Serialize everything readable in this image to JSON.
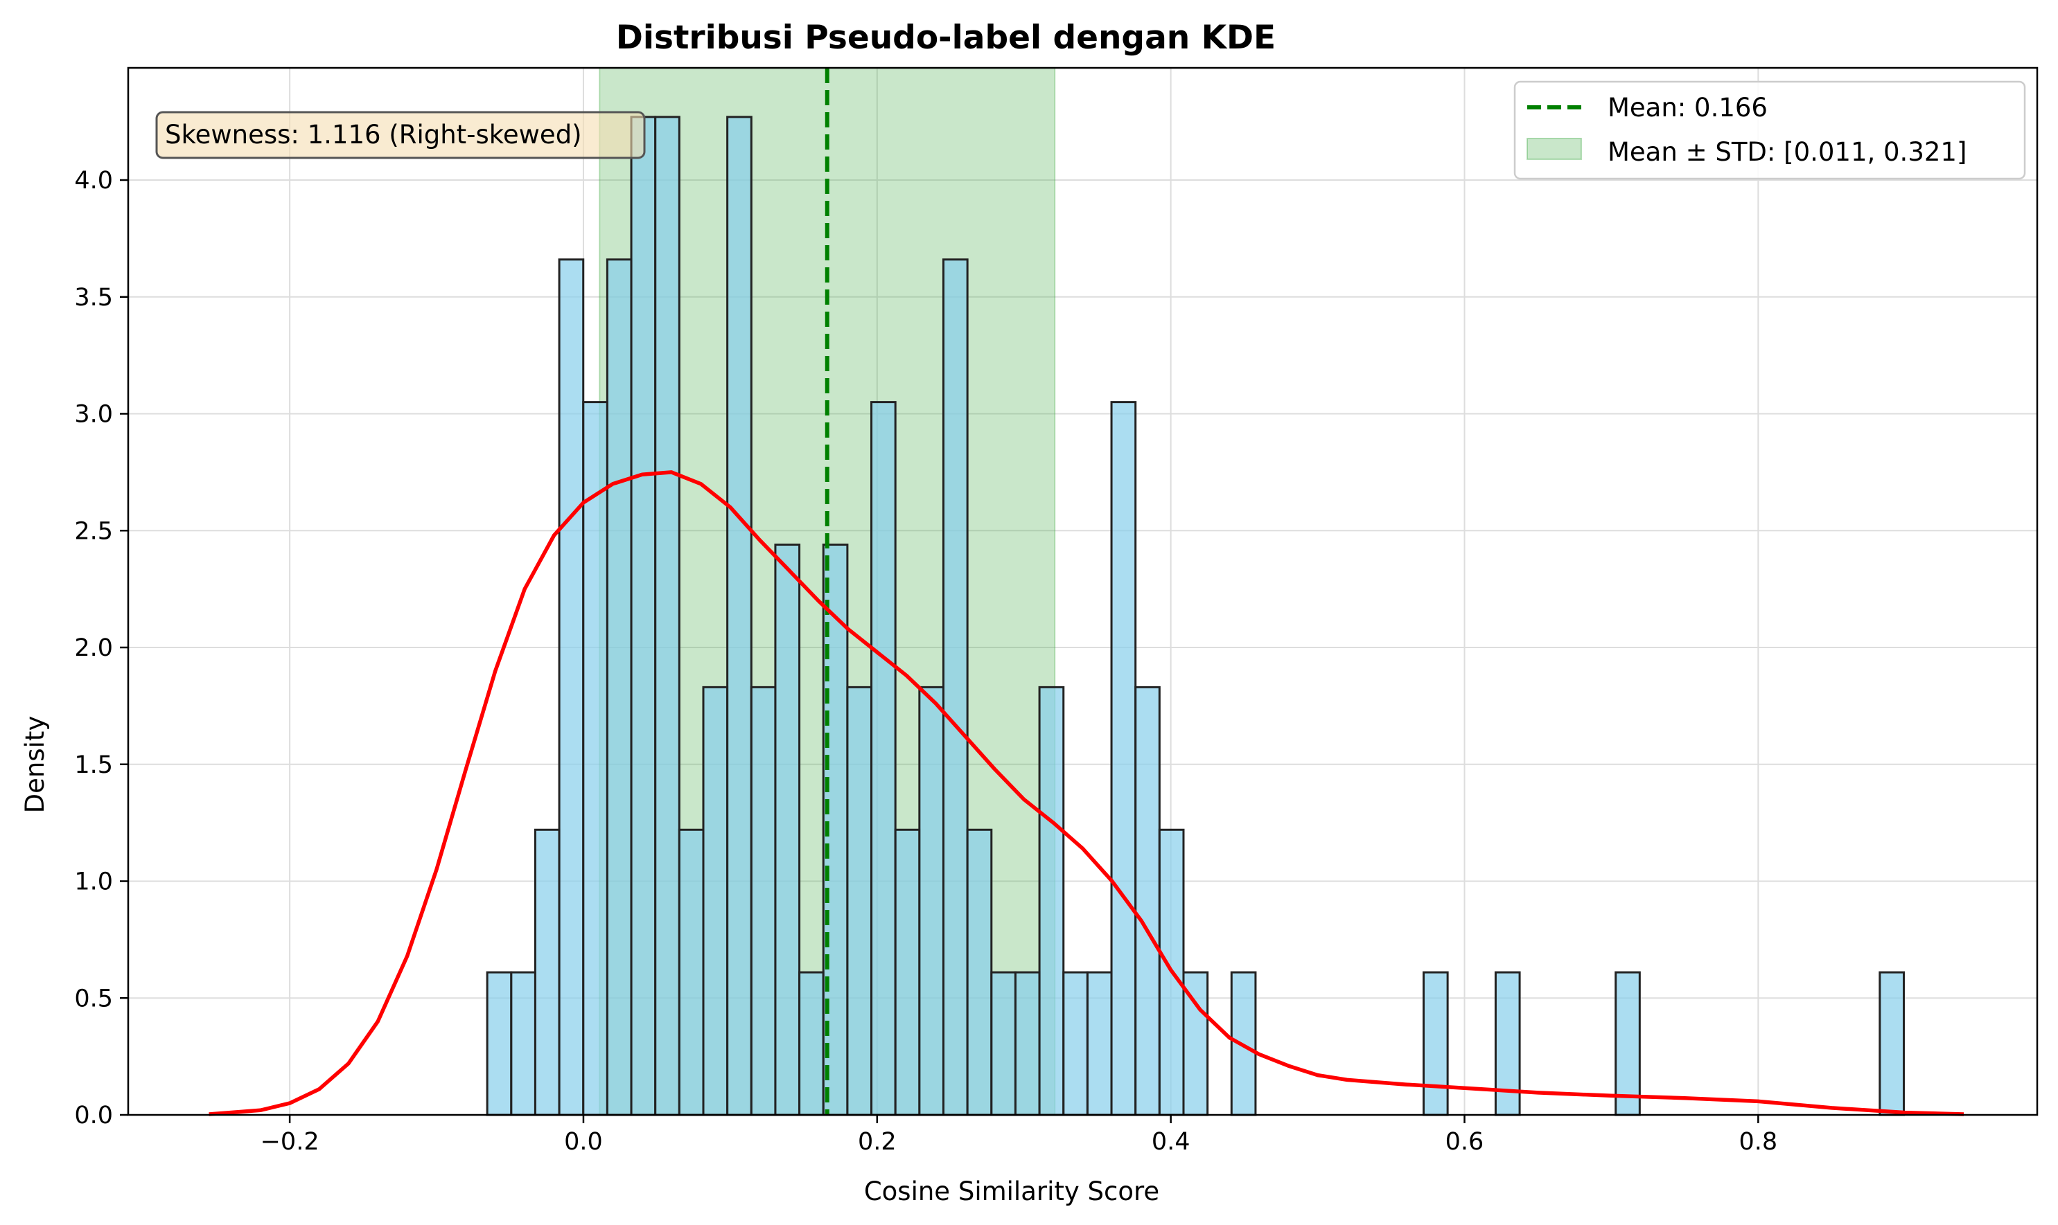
{
  "chart_data": {
    "type": "bar",
    "title": "Distribusi Pseudo-label dengan KDE",
    "xlabel": "Cosine Similarity Score",
    "ylabel": "Density",
    "xlim": [
      -0.31,
      0.99
    ],
    "ylim": [
      0,
      4.48
    ],
    "xticks": [
      -0.2,
      0.0,
      0.2,
      0.4,
      0.6,
      0.8
    ],
    "xtick_labels": [
      "−0.2",
      "0.0",
      "0.2",
      "0.4",
      "0.6",
      "0.8"
    ],
    "yticks": [
      0.0,
      0.5,
      1.0,
      1.5,
      2.0,
      2.5,
      3.0,
      3.5,
      4.0
    ],
    "ytick_labels": [
      "0.0",
      "0.5",
      "1.0",
      "1.5",
      "2.0",
      "2.5",
      "3.0",
      "3.5",
      "4.0"
    ],
    "grid": true,
    "legend_position": "top-right",
    "colors": {
      "bar_fill": "#87ceeb",
      "bar_edge": "#222222",
      "kde": "#ff0000",
      "mean_line": "#008000",
      "std_band": "#4caf50",
      "annotation_bg": "#f5deb3",
      "annotation_edge": "#555555"
    },
    "histogram": {
      "bin_start": -0.0655,
      "bin_width": 0.01635,
      "densities": [
        0.61,
        0.61,
        1.22,
        3.66,
        3.05,
        3.66,
        4.27,
        4.27,
        1.22,
        1.83,
        4.27,
        1.83,
        2.44,
        0.61,
        2.44,
        1.83,
        3.05,
        1.22,
        1.83,
        3.66,
        1.22,
        0.61,
        0.61,
        1.83,
        0.61,
        0.61,
        3.05,
        1.83,
        1.22,
        0.61,
        0,
        0.61,
        0,
        0,
        0,
        0,
        0,
        0,
        0,
        0.61,
        0,
        0,
        0.61,
        0,
        0,
        0,
        0,
        0.61,
        0,
        0,
        0,
        0,
        0,
        0,
        0,
        0,
        0,
        0,
        0.61
      ]
    },
    "kde": {
      "x": [
        -0.255,
        -0.22,
        -0.2,
        -0.18,
        -0.16,
        -0.14,
        -0.12,
        -0.1,
        -0.08,
        -0.06,
        -0.04,
        -0.02,
        0.0,
        0.02,
        0.04,
        0.06,
        0.08,
        0.1,
        0.12,
        0.14,
        0.16,
        0.18,
        0.2,
        0.22,
        0.24,
        0.26,
        0.28,
        0.3,
        0.32,
        0.34,
        0.36,
        0.38,
        0.4,
        0.42,
        0.44,
        0.46,
        0.48,
        0.5,
        0.52,
        0.54,
        0.56,
        0.6,
        0.65,
        0.7,
        0.75,
        0.8,
        0.85,
        0.9,
        0.94
      ],
      "y": [
        0.003,
        0.02,
        0.05,
        0.11,
        0.22,
        0.4,
        0.68,
        1.05,
        1.48,
        1.9,
        2.25,
        2.48,
        2.62,
        2.7,
        2.74,
        2.75,
        2.7,
        2.6,
        2.46,
        2.33,
        2.2,
        2.08,
        1.98,
        1.88,
        1.76,
        1.62,
        1.48,
        1.35,
        1.25,
        1.14,
        1.0,
        0.83,
        0.62,
        0.45,
        0.33,
        0.26,
        0.21,
        0.17,
        0.15,
        0.14,
        0.13,
        0.115,
        0.095,
        0.082,
        0.072,
        0.058,
        0.03,
        0.01,
        0.003
      ]
    },
    "mean": 0.166,
    "mean_line_ymax": 2.44,
    "std_band": [
      0.011,
      0.321
    ],
    "legend": [
      {
        "label": "Mean: 0.166",
        "kind": "dashed-line"
      },
      {
        "label": "Mean ± STD: [0.011, 0.321]",
        "kind": "patch"
      }
    ],
    "annotation": "Skewness: 1.116 (Right-skewed)"
  }
}
